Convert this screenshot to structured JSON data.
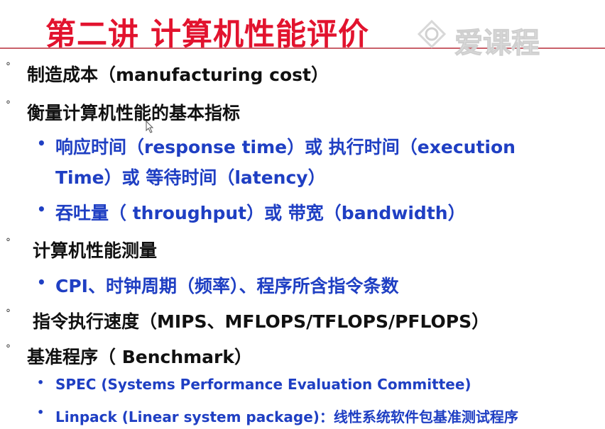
{
  "slide": {
    "title": "第二讲 计算机性能评价",
    "watermark": "爱课程",
    "level1_bullet": "°",
    "level2_bullet": "•",
    "items": [
      {
        "text": "制造成本（manufacturing cost）"
      },
      {
        "text": "衡量计算机性能的基本指标",
        "children": [
          {
            "text": "响应时间（response time）或 执行时间（execution",
            "cont": "Time）或 等待时间（latency）"
          },
          {
            "text": "吞吐量（ throughput）或 带宽（bandwidth）"
          }
        ]
      },
      {
        "text": "计算机性能测量",
        "children": [
          {
            "text": "CPI、时钟周期（频率）、程序所含指令条数"
          }
        ]
      },
      {
        "text": "指令执行速度（MIPS、MFLOPS/TFLOPS/PFLOPS）"
      },
      {
        "text": "基准程序（ Benchmark）",
        "children": [
          {
            "text": "SPEC (Systems Performance Evaluation Committee)"
          },
          {
            "text": "Linpack (Linear system package)：线性系统软件包基准测试程序"
          }
        ]
      }
    ]
  },
  "colors": {
    "title": "#e2132e",
    "body": "#111111",
    "sub": "#1f3fc3"
  }
}
